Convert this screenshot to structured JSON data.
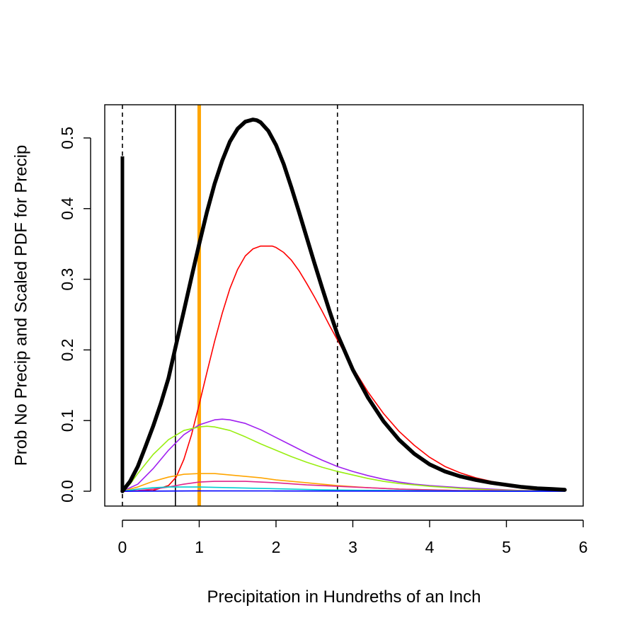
{
  "chart_data": {
    "type": "line",
    "title": "",
    "xlabel": "Precipitation in Hundreths of an Inch",
    "ylabel": "Prob No Precip and Scaled PDF for Precip",
    "xlim": [
      -0.23,
      6.0
    ],
    "ylim": [
      -0.021,
      0.547
    ],
    "x_ticks": [
      0,
      1,
      2,
      3,
      4,
      5,
      6
    ],
    "y_ticks": [
      0.0,
      0.1,
      0.2,
      0.3,
      0.4,
      0.5
    ],
    "x_tick_labels": [
      "0",
      "1",
      "2",
      "3",
      "4",
      "5",
      "6"
    ],
    "y_tick_labels": [
      "0.0",
      "0.1",
      "0.2",
      "0.3",
      "0.4",
      "0.5"
    ],
    "grid": false,
    "legend": "none",
    "point_mass": {
      "x": 0,
      "y": 0.474,
      "color": "#000000"
    },
    "reference_lines": [
      {
        "kind": "vertical",
        "x": 0,
        "style": "dashed",
        "color": "#000000"
      },
      {
        "kind": "vertical",
        "x": 0.69,
        "style": "solid",
        "color": "#000000"
      },
      {
        "kind": "vertical",
        "x": 2.8,
        "style": "dashed",
        "color": "#000000"
      },
      {
        "kind": "vertical",
        "x": 1.0,
        "style": "solid",
        "color": "#FFA500"
      }
    ],
    "series": [
      {
        "color": "#000000",
        "bold": true,
        "x": [
          0,
          0.1,
          0.2,
          0.3,
          0.4,
          0.5,
          0.6,
          0.7,
          0.8,
          0.9,
          1.0,
          1.1,
          1.2,
          1.3,
          1.4,
          1.5,
          1.6,
          1.7,
          1.75,
          1.8,
          1.9,
          2.0,
          2.1,
          2.2,
          2.3,
          2.4,
          2.5,
          2.6,
          2.7,
          2.8,
          3.0,
          3.2,
          3.4,
          3.6,
          3.8,
          4.0,
          4.2,
          4.4,
          4.6,
          4.8,
          5.0,
          5.2,
          5.4,
          5.6,
          5.76
        ],
        "y": [
          0,
          0.014,
          0.035,
          0.063,
          0.092,
          0.124,
          0.16,
          0.208,
          0.255,
          0.303,
          0.35,
          0.395,
          0.435,
          0.468,
          0.495,
          0.513,
          0.523,
          0.526,
          0.525,
          0.522,
          0.51,
          0.49,
          0.463,
          0.43,
          0.395,
          0.359,
          0.323,
          0.288,
          0.254,
          0.222,
          0.172,
          0.132,
          0.099,
          0.073,
          0.053,
          0.038,
          0.028,
          0.021,
          0.016,
          0.012,
          0.009,
          0.006,
          0.004,
          0.003,
          0.002
        ]
      },
      {
        "color": "#FF0000",
        "x": [
          0,
          0.4,
          0.6,
          0.7,
          0.8,
          0.9,
          1.0,
          1.1,
          1.2,
          1.3,
          1.4,
          1.5,
          1.6,
          1.7,
          1.8,
          1.9,
          1.95,
          2.0,
          2.1,
          2.2,
          2.3,
          2.4,
          2.5,
          2.6,
          2.7,
          2.8,
          3.0,
          3.2,
          3.4,
          3.6,
          3.8,
          4.0,
          4.2,
          4.4,
          4.6,
          4.8,
          5.0,
          5.2,
          5.4,
          5.6,
          5.76
        ],
        "y": [
          0,
          0.001,
          0.008,
          0.02,
          0.045,
          0.08,
          0.123,
          0.168,
          0.212,
          0.252,
          0.287,
          0.314,
          0.333,
          0.343,
          0.347,
          0.347,
          0.347,
          0.345,
          0.338,
          0.327,
          0.312,
          0.294,
          0.275,
          0.255,
          0.234,
          0.214,
          0.175,
          0.14,
          0.11,
          0.085,
          0.065,
          0.048,
          0.035,
          0.026,
          0.019,
          0.014,
          0.01,
          0.007,
          0.005,
          0.003,
          0.002
        ]
      },
      {
        "color": "#A020F0",
        "x": [
          0,
          0.2,
          0.4,
          0.6,
          0.8,
          1.0,
          1.2,
          1.3,
          1.4,
          1.6,
          1.8,
          2.0,
          2.2,
          2.4,
          2.6,
          2.8,
          3.0,
          3.2,
          3.4,
          3.6,
          3.8,
          4.0,
          4.4,
          4.8,
          5.2,
          5.76
        ],
        "y": [
          0,
          0.01,
          0.032,
          0.058,
          0.08,
          0.094,
          0.101,
          0.102,
          0.101,
          0.096,
          0.087,
          0.076,
          0.065,
          0.054,
          0.044,
          0.035,
          0.028,
          0.022,
          0.017,
          0.013,
          0.01,
          0.008,
          0.005,
          0.003,
          0.001,
          0.001
        ]
      },
      {
        "color": "#99EE11",
        "x": [
          0,
          0.1,
          0.2,
          0.4,
          0.6,
          0.8,
          1.0,
          1.1,
          1.2,
          1.4,
          1.6,
          1.8,
          2.0,
          2.2,
          2.4,
          2.6,
          2.8,
          3.0,
          3.2,
          3.4,
          3.6,
          3.8,
          4.0,
          4.4,
          4.8,
          5.2,
          5.76
        ],
        "y": [
          0,
          0.01,
          0.025,
          0.052,
          0.073,
          0.086,
          0.091,
          0.092,
          0.091,
          0.086,
          0.077,
          0.067,
          0.058,
          0.049,
          0.041,
          0.034,
          0.028,
          0.023,
          0.018,
          0.014,
          0.011,
          0.009,
          0.007,
          0.004,
          0.002,
          0.001,
          0.0005
        ]
      },
      {
        "color": "#FFA500",
        "x": [
          0,
          0.2,
          0.4,
          0.6,
          0.8,
          1.0,
          1.2,
          1.4,
          1.6,
          1.8,
          2.0,
          2.4,
          2.8,
          3.2,
          3.6,
          4.0,
          4.4,
          4.8,
          5.2,
          5.76
        ],
        "y": [
          0,
          0.006,
          0.014,
          0.02,
          0.024,
          0.025,
          0.025,
          0.023,
          0.021,
          0.019,
          0.016,
          0.012,
          0.008,
          0.005,
          0.003,
          0.002,
          0.001,
          0.001,
          0.0005,
          0.0002
        ]
      },
      {
        "color": "#E0258A",
        "x": [
          0,
          0.2,
          0.4,
          0.6,
          0.8,
          1.0,
          1.2,
          1.4,
          1.6,
          1.8,
          2.0,
          2.4,
          2.8,
          3.2,
          3.6,
          4.0,
          4.4,
          4.8,
          5.2,
          5.76
        ],
        "y": [
          0,
          0.001,
          0.003,
          0.006,
          0.01,
          0.013,
          0.014,
          0.014,
          0.014,
          0.013,
          0.012,
          0.009,
          0.007,
          0.005,
          0.003,
          0.002,
          0.001,
          0.001,
          0.0005,
          0.0002
        ]
      },
      {
        "color": "#00CED1",
        "x": [
          0,
          0.2,
          0.4,
          0.6,
          0.8,
          1.0,
          1.4,
          1.8,
          2.2,
          2.6,
          3.0,
          3.6,
          4.2,
          5.0,
          5.76
        ],
        "y": [
          0,
          0.003,
          0.005,
          0.006,
          0.006,
          0.006,
          0.005,
          0.004,
          0.003,
          0.002,
          0.0015,
          0.001,
          0.0005,
          0.0002,
          0.0001
        ]
      },
      {
        "color": "#0000FF",
        "x": [
          0,
          1.0,
          2.0,
          3.0,
          4.0,
          5.0,
          5.76
        ],
        "y": [
          0,
          0.0005,
          0.0004,
          0.0002,
          0.0001,
          0.0,
          0.0
        ]
      }
    ]
  }
}
